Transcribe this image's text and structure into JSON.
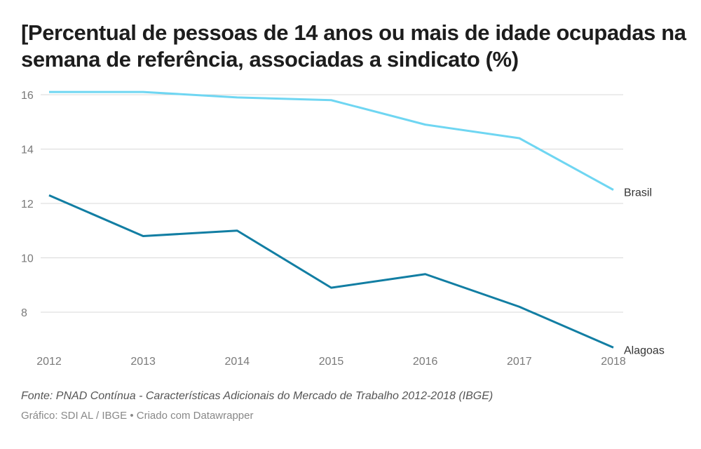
{
  "chart_data": {
    "type": "line",
    "title": "[Percentual de pessoas de 14 anos ou mais de idade ocupadas na semana de referência, associadas a sindicato (%)",
    "xlabel": "",
    "ylabel": "",
    "x": [
      "2012",
      "2013",
      "2014",
      "2015",
      "2016",
      "2017",
      "2018"
    ],
    "series": [
      {
        "name": "Brasil",
        "color": "#6fd6f2",
        "values": [
          16.1,
          16.1,
          15.9,
          15.8,
          14.9,
          14.4,
          12.5
        ]
      },
      {
        "name": "Alagoas",
        "color": "#127ea3",
        "values": [
          12.3,
          10.8,
          11.0,
          8.9,
          9.4,
          8.2,
          6.7
        ]
      }
    ],
    "yticks": [
      8,
      10,
      12,
      14,
      16
    ],
    "ylim": [
      6.6,
      16.1
    ],
    "grid": true,
    "legend": "direct labels at line ends (right)"
  },
  "footer": {
    "source": "Fonte: PNAD Contínua - Características Adicionais do Mercado de Trabalho 2012-2018 (IBGE)",
    "byline": "Gráfico: SDI AL / IBGE • Criado com Datawrapper"
  }
}
